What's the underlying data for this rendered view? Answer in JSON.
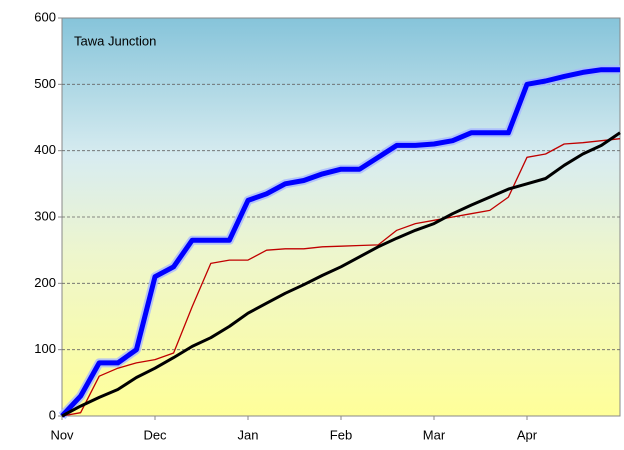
{
  "chart_data": {
    "type": "line",
    "title": "Tawa Junction",
    "categories": [
      "Nov",
      null,
      null,
      null,
      null,
      "Dec",
      null,
      null,
      null,
      null,
      "Jan",
      null,
      null,
      null,
      null,
      "Feb",
      null,
      null,
      null,
      null,
      "Mar",
      null,
      null,
      null,
      null,
      "Apr",
      null,
      null,
      null,
      null,
      null
    ],
    "series": [
      {
        "color": "#0000ff",
        "values": [
          0,
          30,
          80,
          80,
          100,
          210,
          225,
          265,
          265,
          265,
          325,
          335,
          350,
          355,
          365,
          372,
          372,
          390,
          408,
          408,
          410,
          415,
          427,
          427,
          427,
          500,
          505,
          512,
          518,
          522,
          522
        ]
      },
      {
        "color": "#c00000",
        "values": [
          0,
          5,
          60,
          72,
          80,
          85,
          95,
          165,
          230,
          235,
          235,
          250,
          252,
          252,
          255,
          256,
          257,
          258,
          280,
          290,
          295,
          300,
          305,
          310,
          330,
          390,
          395,
          410,
          412,
          415,
          418
        ]
      },
      {
        "color": "#000000",
        "values": [
          0,
          15,
          28,
          40,
          58,
          72,
          88,
          105,
          118,
          135,
          155,
          170,
          185,
          198,
          212,
          225,
          240,
          255,
          268,
          280,
          290,
          305,
          318,
          330,
          342,
          350,
          358,
          378,
          395,
          408,
          427
        ]
      }
    ],
    "ylim": [
      0,
      600
    ],
    "yticks": [
      0,
      100,
      200,
      300,
      400,
      500,
      600
    ],
    "grid": true
  }
}
